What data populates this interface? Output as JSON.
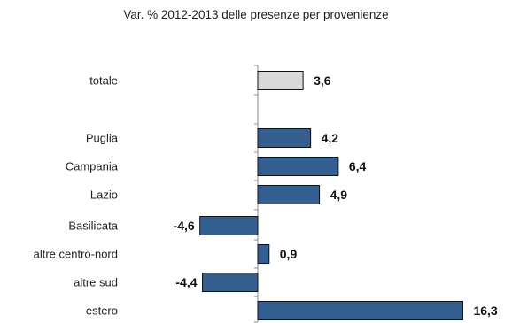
{
  "chart_data": {
    "type": "bar",
    "orientation": "horizontal",
    "title": "Var. % 2012-2013 delle presenze per provenienze",
    "categories": [
      "totale",
      "Puglia",
      "Campania",
      "Lazio",
      "Basilicata",
      "altre centro-nord",
      "altre sud",
      "estero"
    ],
    "values": [
      3.6,
      4.2,
      6.4,
      4.9,
      -4.6,
      0.9,
      -4.4,
      16.3
    ],
    "value_labels": [
      "3,6",
      "4,2",
      "6,4",
      "4,9",
      "-4,6",
      "0,9",
      "-4,4",
      "16,3"
    ],
    "colors": {
      "totale": "#d9d9d9",
      "regions": "#365f91",
      "outline": "#111111"
    },
    "xlim": [
      -5,
      16.5
    ],
    "grid": false,
    "legend": "none"
  }
}
